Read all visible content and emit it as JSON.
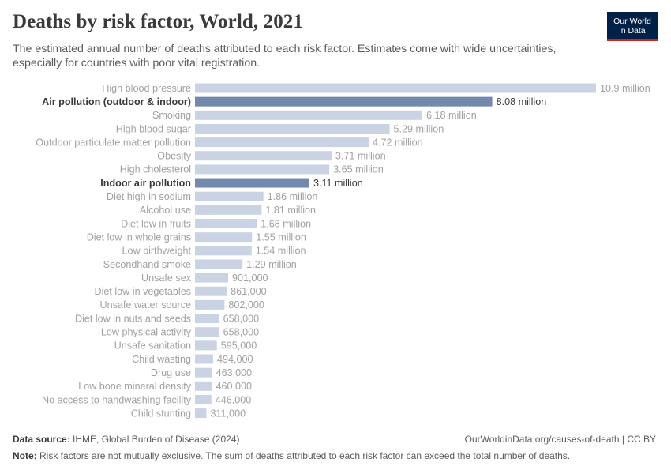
{
  "header": {
    "title": "Deaths by risk factor, World, 2021",
    "subtitle": "The estimated annual number of deaths attributed to each risk factor. Estimates come with wide uncertainties, especially for countries with poor vital registration."
  },
  "logo": {
    "line1": "Our World",
    "line2": "in Data",
    "bg_color": "#002147",
    "accent_color": "#ce261e"
  },
  "footer": {
    "source_label": "Data source:",
    "source_text": "IHME, Global Burden of Disease (2024)",
    "url_text": "OurWorldinData.org/causes-of-death | CC BY",
    "note_label": "Note:",
    "note_text": "Risk factors are not mutually exclusive. The sum of deaths attributed to each risk factor can exceed the total number of deaths."
  },
  "colors": {
    "bar_default": "#c9d3e3",
    "bar_highlight": "#7388ad",
    "label_default": "#a1a1a1",
    "label_highlight": "#3a3a3a"
  },
  "chart_data": {
    "type": "bar",
    "orientation": "horizontal",
    "title": "Deaths by risk factor, World, 2021",
    "xlim": [
      0,
      10900000
    ],
    "grid": false,
    "categories": [
      "High blood pressure",
      "Air pollution (outdoor & indoor)",
      "Smoking",
      "High blood sugar",
      "Outdoor particulate matter pollution",
      "Obesity",
      "High cholesterol",
      "Indoor air pollution",
      "Diet high in sodium",
      "Alcohol use",
      "Diet low in fruits",
      "Diet low in whole grains",
      "Low birthweight",
      "Secondhand smoke",
      "Unsafe sex",
      "Diet low in vegetables",
      "Unsafe water source",
      "Diet low in nuts and seeds",
      "Low physical activity",
      "Unsafe sanitation",
      "Child wasting",
      "Drug use",
      "Low bone mineral density",
      "No access to handwashing facility",
      "Child stunting"
    ],
    "values": [
      10900000,
      8080000,
      6180000,
      5290000,
      4720000,
      3710000,
      3650000,
      3110000,
      1860000,
      1810000,
      1680000,
      1550000,
      1540000,
      1290000,
      901000,
      861000,
      802000,
      658000,
      658000,
      595000,
      494000,
      463000,
      460000,
      446000,
      311000
    ],
    "value_labels": [
      "10.9 million",
      "8.08 million",
      "6.18 million",
      "5.29 million",
      "4.72 million",
      "3.71 million",
      "3.65 million",
      "3.11 million",
      "1.86 million",
      "1.81 million",
      "1.68 million",
      "1.55 million",
      "1.54 million",
      "1.29 million",
      "901,000",
      "861,000",
      "802,000",
      "658,000",
      "658,000",
      "595,000",
      "494,000",
      "463,000",
      "460,000",
      "446,000",
      "311,000"
    ],
    "highlighted": [
      "Air pollution (outdoor & indoor)",
      "Indoor air pollution"
    ]
  }
}
